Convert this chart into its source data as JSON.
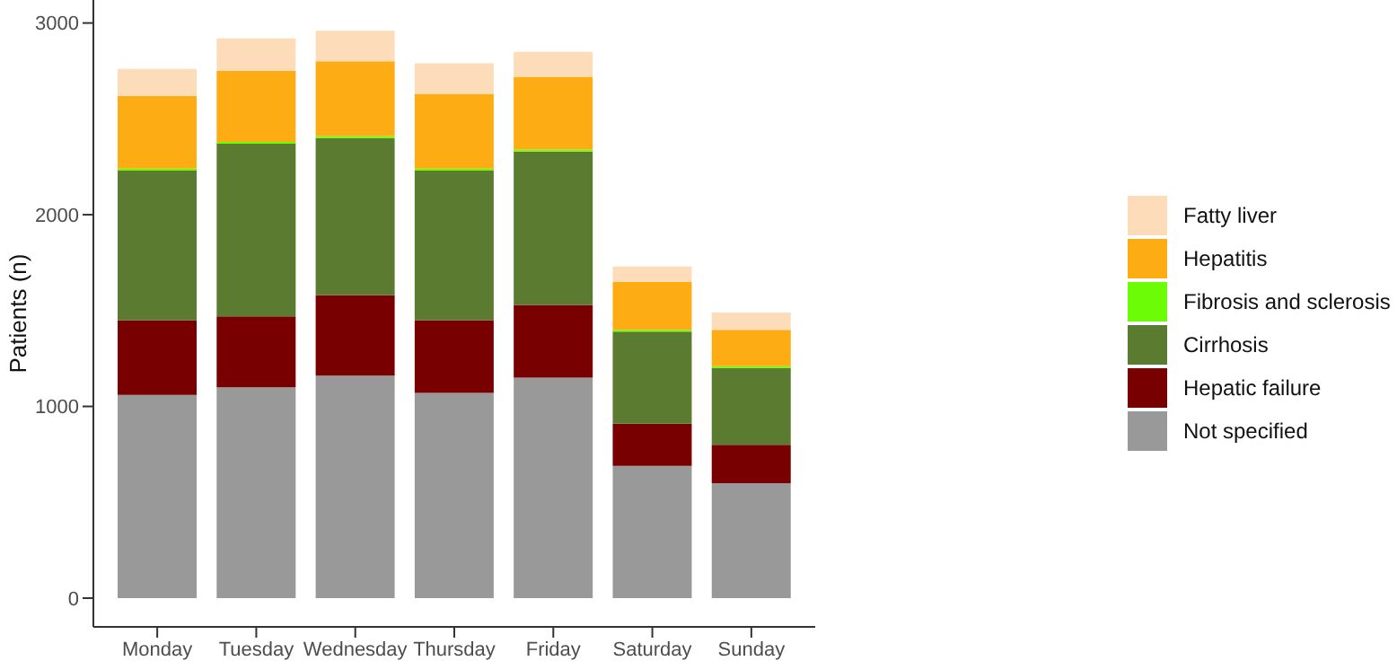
{
  "chart_data": {
    "type": "bar",
    "stacked": true,
    "ylabel": "Patients (n)",
    "categories": [
      "Monday",
      "Tuesday",
      "Wednesday",
      "Thursday",
      "Friday",
      "Saturday",
      "Sunday"
    ],
    "series": [
      {
        "name": "Not specified",
        "color": "#999999",
        "values": [
          1060,
          1100,
          1160,
          1070,
          1150,
          690,
          600
        ]
      },
      {
        "name": "Hepatic failure",
        "color": "#780000",
        "values": [
          390,
          370,
          420,
          380,
          380,
          220,
          200
        ]
      },
      {
        "name": "Cirrhosis",
        "color": "#5b7b30",
        "values": [
          780,
          900,
          820,
          780,
          800,
          480,
          400
        ]
      },
      {
        "name": "Fibrosis and sclerosis",
        "color": "#6cfc05",
        "values": [
          10,
          10,
          10,
          10,
          10,
          10,
          10
        ]
      },
      {
        "name": "Hepatitis",
        "color": "#fdac13",
        "values": [
          380,
          370,
          390,
          390,
          380,
          250,
          190
        ]
      },
      {
        "name": "Fatty liver",
        "color": "#fddcb9",
        "values": [
          140,
          170,
          160,
          160,
          130,
          80,
          90
        ]
      }
    ],
    "ylim": [
      -150,
      3120
    ],
    "yticks": [
      0,
      1000,
      2000,
      3000
    ],
    "grid": false,
    "legend": "right"
  }
}
